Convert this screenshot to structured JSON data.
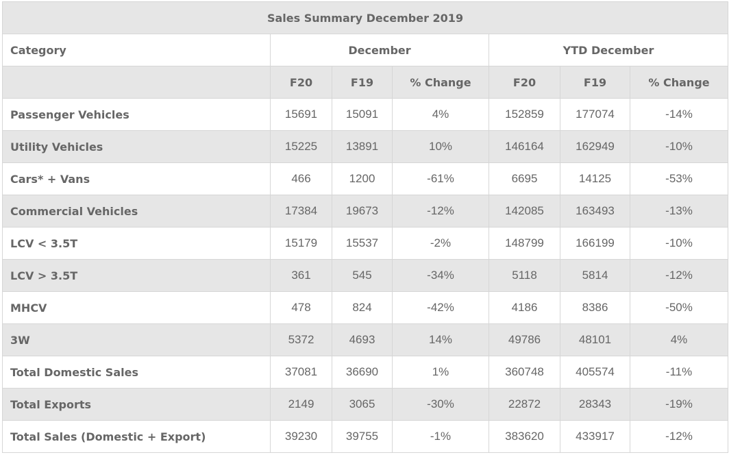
{
  "title": "Sales Summary December 2019",
  "header": {
    "category": "Category",
    "group1": "December",
    "group2": "YTD December",
    "subcols": [
      "F20",
      "F19",
      "% Change",
      "F20",
      "F19",
      "% Change"
    ]
  },
  "rows": [
    {
      "category": "Passenger Vehicles",
      "values": [
        "15691",
        "15091",
        "4%",
        "152859",
        "177074",
        "-14%"
      ]
    },
    {
      "category": "Utility Vehicles",
      "values": [
        "15225",
        "13891",
        "10%",
        "146164",
        "162949",
        "-10%"
      ]
    },
    {
      "category": "Cars* + Vans",
      "values": [
        "466",
        "1200",
        "-61%",
        "6695",
        "14125",
        "-53%"
      ]
    },
    {
      "category": "Commercial Vehicles",
      "values": [
        "17384",
        "19673",
        "-12%",
        "142085",
        "163493",
        "-13%"
      ]
    },
    {
      "category": "LCV < 3.5T",
      "values": [
        "15179",
        "15537",
        "-2%",
        "148799",
        "166199",
        "-10%"
      ]
    },
    {
      "category": "LCV > 3.5T",
      "values": [
        "361",
        "545",
        "-34%",
        "5118",
        "5814",
        "-12%"
      ]
    },
    {
      "category": "MHCV",
      "values": [
        "478",
        "824",
        "-42%",
        "4186",
        "8386",
        "-50%"
      ]
    },
    {
      "category": "3W",
      "values": [
        "5372",
        "4693",
        "14%",
        "49786",
        "48101",
        "4%"
      ]
    },
    {
      "category": "Total Domestic Sales",
      "values": [
        "37081",
        "36690",
        "1%",
        "360748",
        "405574",
        "-11%"
      ]
    },
    {
      "category": "Total Exports",
      "values": [
        "2149",
        "3065",
        "-30%",
        "22872",
        "28343",
        "-19%"
      ]
    },
    {
      "category": "Total Sales (Domestic + Export)",
      "values": [
        "39230",
        "39755",
        "-1%",
        "383620",
        "433917",
        "-12%"
      ]
    }
  ],
  "colors": {
    "stripe": "#e6e6e6",
    "text": "#666666",
    "border": "#d6d6d6"
  }
}
